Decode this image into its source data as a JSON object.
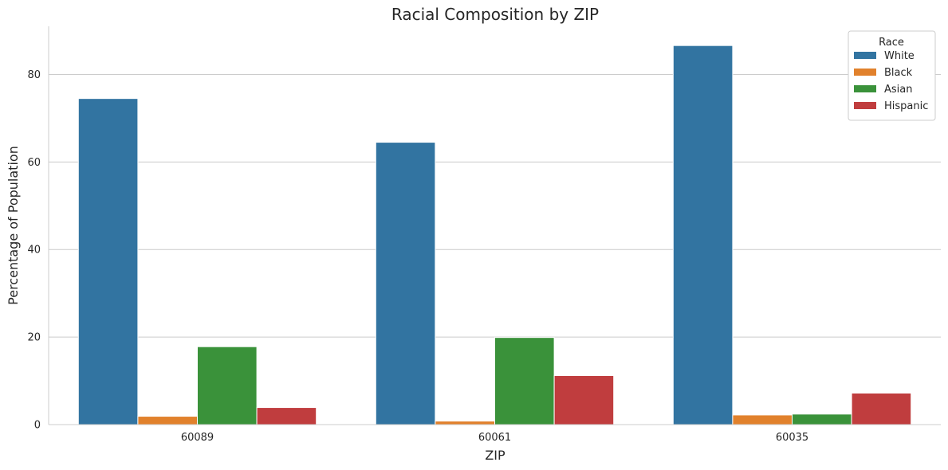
{
  "chart_data": {
    "type": "bar",
    "title": "Racial Composition by ZIP",
    "xlabel": "ZIP",
    "ylabel": "Percentage of Population",
    "categories": [
      "60089",
      "60061",
      "60035"
    ],
    "ylim": [
      0,
      91
    ],
    "yticks": [
      0,
      20,
      40,
      60,
      80
    ],
    "grid": "horizontal",
    "legend": {
      "title": "Race",
      "placement": "top-right"
    },
    "series": [
      {
        "name": "White",
        "color": "#3274a1",
        "values": [
          74.5,
          64.5,
          86.6
        ]
      },
      {
        "name": "Black",
        "color": "#e1812c",
        "values": [
          1.9,
          0.8,
          2.2
        ]
      },
      {
        "name": "Asian",
        "color": "#3a923a",
        "values": [
          17.8,
          19.9,
          2.4
        ]
      },
      {
        "name": "Hispanic",
        "color": "#c03d3e",
        "values": [
          3.9,
          11.2,
          7.2
        ]
      }
    ]
  }
}
